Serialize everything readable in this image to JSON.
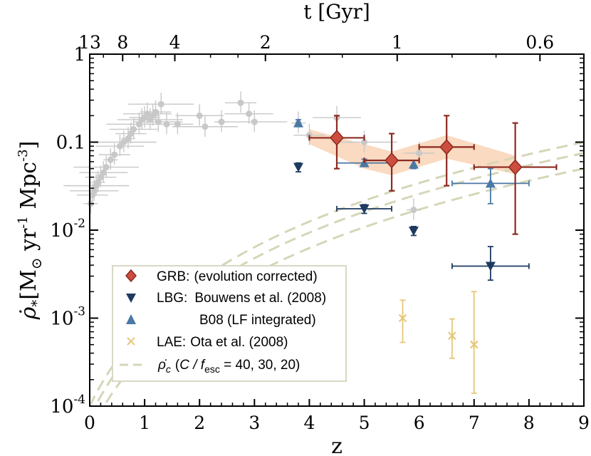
{
  "chart_data": {
    "type": "scatter",
    "title": "",
    "xlabel": "z",
    "ylabel_main": "ρ̇",
    "ylabel_sub": "*",
    "ylabel_units": "[M",
    "ylabel_sun": "⊙",
    "ylabel_rest": " yr",
    "ylabel_exp1": "-1",
    "ylabel_mpc": " Mpc",
    "ylabel_exp2": "-3",
    "ylabel_close": "]",
    "top_axis_label": "t [Gyr]",
    "xlim": [
      0,
      9
    ],
    "ylim": [
      0.0001,
      1
    ],
    "yscale": "log",
    "x_ticks": [
      0,
      1,
      2,
      3,
      4,
      5,
      6,
      7,
      8,
      9
    ],
    "x_tick_labels": [
      "0",
      "1",
      "2",
      "3",
      "4",
      "5",
      "6",
      "7",
      "8",
      "9"
    ],
    "y_tick_labels": [
      {
        "value": 1,
        "base": "1",
        "exp": ""
      },
      {
        "value": 0.1,
        "base": "0.1",
        "exp": ""
      },
      {
        "value": 0.01,
        "base": "10",
        "exp": "-2"
      },
      {
        "value": 0.001,
        "base": "10",
        "exp": "-3"
      },
      {
        "value": 0.0001,
        "base": "10",
        "exp": "-4"
      }
    ],
    "top_ticks": [
      {
        "z": 0.0,
        "label": "13"
      },
      {
        "z": 0.6,
        "label": "8"
      },
      {
        "z": 1.55,
        "label": "4"
      },
      {
        "z": 3.2,
        "label": "2"
      },
      {
        "z": 5.6,
        "label": "1"
      },
      {
        "z": 8.2,
        "label": "0.6"
      }
    ],
    "colors": {
      "grb": "#cc4e3e",
      "grb_err": "#8c2a20",
      "lbg": "#1e3a5f",
      "b08": "#4b79a6",
      "lae": "#e6c87a",
      "rhoc": "#d6d6b8",
      "band": "#f9d3b5",
      "gray": "#c8c8c8",
      "legend_border": "#d8d8c4"
    },
    "series": [
      {
        "name": "GRB: (evolution corrected)",
        "marker": "diamond",
        "points": [
          {
            "x": 4.5,
            "y": 0.112,
            "xerr": [
              0.5,
              0.5
            ],
            "yerr": [
              0.05,
              0.2
            ]
          },
          {
            "x": 5.5,
            "y": 0.062,
            "xerr": [
              0.5,
              0.5
            ],
            "yerr": [
              0.028,
              0.125
            ]
          },
          {
            "x": 6.5,
            "y": 0.088,
            "xerr": [
              0.5,
              0.5
            ],
            "yerr": [
              0.032,
              0.2
            ]
          },
          {
            "x": 7.75,
            "y": 0.052,
            "xerr": [
              0.75,
              0.75
            ],
            "yerr": [
              0.009,
              0.165
            ]
          }
        ]
      },
      {
        "name": "LBG: Bouwens et al. (2008)",
        "marker": "triangle-down",
        "points": [
          {
            "x": 3.8,
            "y": 0.052,
            "xerr": [
              0.0,
              0.0
            ],
            "yerr": [
              0.046,
              0.058
            ]
          },
          {
            "x": 5.0,
            "y": 0.0175,
            "xerr": [
              0.5,
              0.5
            ],
            "yerr": [
              0.0155,
              0.0195
            ]
          },
          {
            "x": 5.9,
            "y": 0.0098,
            "xerr": [
              0.0,
              0.0
            ],
            "yerr": [
              0.0087,
              0.011
            ]
          },
          {
            "x": 7.3,
            "y": 0.0039,
            "xerr": [
              0.7,
              0.7
            ],
            "yerr": [
              0.0027,
              0.0065
            ]
          }
        ]
      },
      {
        "name": "B08 (LF integrated)",
        "marker": "triangle-up",
        "points": [
          {
            "x": 3.8,
            "y": 0.165,
            "xerr": [
              0.0,
              0.0
            ],
            "yerr": [
              0.15,
              0.18
            ]
          },
          {
            "x": 5.0,
            "y": 0.058,
            "xerr": [
              0.5,
              0.5
            ],
            "yerr": [
              0.053,
              0.064
            ]
          },
          {
            "x": 5.9,
            "y": 0.056,
            "xerr": [
              0.0,
              0.0
            ],
            "yerr": [
              0.05,
              0.062
            ]
          },
          {
            "x": 7.3,
            "y": 0.034,
            "xerr": [
              0.7,
              0.7
            ],
            "yerr": [
              0.02,
              0.05
            ]
          }
        ]
      },
      {
        "name": "LAE: Ota et al. (2008)",
        "marker": "x",
        "points": [
          {
            "x": 5.7,
            "y": 0.001,
            "yerr": [
              0.00053,
              0.0016
            ]
          },
          {
            "x": 6.6,
            "y": 0.00063,
            "yerr": [
              0.00035,
              0.00098
            ]
          },
          {
            "x": 7.0,
            "y": 0.0005,
            "yerr": [
              0.00014,
              0.002
            ]
          }
        ]
      }
    ],
    "band": {
      "name": "GRB range",
      "points": [
        {
          "x": 4.0,
          "lo": 0.095,
          "hi": 0.14
        },
        {
          "x": 5.0,
          "lo": 0.05,
          "hi": 0.095
        },
        {
          "x": 5.5,
          "lo": 0.042,
          "hi": 0.078
        },
        {
          "x": 6.5,
          "lo": 0.065,
          "hi": 0.12
        },
        {
          "x": 7.75,
          "lo": 0.043,
          "hi": 0.07
        }
      ]
    },
    "rho_c": {
      "name": "ρ̇c (C/fesc = 40, 30, 20)",
      "curves": [
        {
          "C_over_fesc": 40,
          "ref_x": 9,
          "ref_y": 0.1
        },
        {
          "C_over_fesc": 30,
          "ref_x": 9,
          "ref_y": 0.075
        },
        {
          "C_over_fesc": 20,
          "ref_x": 9,
          "ref_y": 0.05
        }
      ],
      "x_range": [
        0,
        9
      ]
    },
    "gray_compilation": [
      {
        "x": 0.02,
        "y": 0.02
      },
      {
        "x": 0.05,
        "y": 0.025
      },
      {
        "x": 0.08,
        "y": 0.028
      },
      {
        "x": 0.12,
        "y": 0.032
      },
      {
        "x": 0.15,
        "y": 0.035
      },
      {
        "x": 0.2,
        "y": 0.04
      },
      {
        "x": 0.25,
        "y": 0.045
      },
      {
        "x": 0.3,
        "y": 0.052
      },
      {
        "x": 0.38,
        "y": 0.063
      },
      {
        "x": 0.45,
        "y": 0.072
      },
      {
        "x": 0.55,
        "y": 0.09
      },
      {
        "x": 0.62,
        "y": 0.1
      },
      {
        "x": 0.7,
        "y": 0.11
      },
      {
        "x": 0.75,
        "y": 0.125
      },
      {
        "x": 0.8,
        "y": 0.14
      },
      {
        "x": 0.9,
        "y": 0.16
      },
      {
        "x": 0.95,
        "y": 0.18
      },
      {
        "x": 1.0,
        "y": 0.19
      },
      {
        "x": 1.05,
        "y": 0.21
      },
      {
        "x": 1.1,
        "y": 0.18
      },
      {
        "x": 1.15,
        "y": 0.2
      },
      {
        "x": 1.2,
        "y": 0.22
      },
      {
        "x": 1.25,
        "y": 0.17
      },
      {
        "x": 1.3,
        "y": 0.27
      },
      {
        "x": 1.4,
        "y": 0.16
      },
      {
        "x": 1.6,
        "y": 0.16
      },
      {
        "x": 2.0,
        "y": 0.2
      },
      {
        "x": 2.1,
        "y": 0.15
      },
      {
        "x": 2.4,
        "y": 0.17
      },
      {
        "x": 2.75,
        "y": 0.28
      },
      {
        "x": 2.9,
        "y": 0.21
      },
      {
        "x": 3.0,
        "y": 0.17
      },
      {
        "x": 3.8,
        "y": 0.165
      },
      {
        "x": 4.0,
        "y": 0.12
      },
      {
        "x": 4.5,
        "y": 0.19
      },
      {
        "x": 5.0,
        "y": 0.1
      },
      {
        "x": 5.9,
        "y": 0.017
      },
      {
        "x": 6.0,
        "y": 0.075
      }
    ],
    "legend": {
      "position": "lower-left",
      "entries": [
        {
          "key": "grb",
          "prefix": "GRB:",
          "text": "(evolution corrected)"
        },
        {
          "key": "lbg",
          "prefix": "LBG:",
          "text": "Bouwens et al. (2008)"
        },
        {
          "key": "b08",
          "prefix": "",
          "text": "B08 (LF integrated)"
        },
        {
          "key": "lae",
          "prefix": "LAE:",
          "text": "Ota et al. (2008)"
        },
        {
          "key": "rhoc",
          "prefix": "",
          "text_pre": "(",
          "c_over": "C / f",
          "esc": "esc",
          "text_post": " = 40, 30, 20)",
          "rho": "ρ̇",
          "sub": "c"
        }
      ]
    }
  }
}
